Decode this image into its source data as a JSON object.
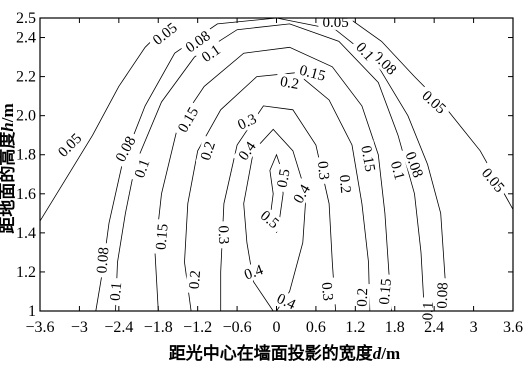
{
  "chart_data": {
    "type": "contour",
    "xlabel": "距光中心在墙面投影的宽度",
    "xlabel_var": "d",
    "xlabel_unit": "/m",
    "ylabel": "距地面的高度",
    "ylabel_var": "h",
    "ylabel_unit": "/m",
    "xlim": [
      -3.6,
      3.6
    ],
    "ylim": [
      1.0,
      2.5
    ],
    "grid": false,
    "xticks": [
      {
        "value": -3.6,
        "label": "−3.6"
      },
      {
        "value": -3.0,
        "label": "−3"
      },
      {
        "value": -2.4,
        "label": "−2.4"
      },
      {
        "value": -1.8,
        "label": "−1.8"
      },
      {
        "value": -1.2,
        "label": "−1.2"
      },
      {
        "value": -0.6,
        "label": "−0.6"
      },
      {
        "value": 0.0,
        "label": "0"
      },
      {
        "value": 0.6,
        "label": "0.6"
      },
      {
        "value": 1.2,
        "label": "1.2"
      },
      {
        "value": 1.8,
        "label": "1.8"
      },
      {
        "value": 2.4,
        "label": "2.4"
      },
      {
        "value": 3.0,
        "label": "3"
      },
      {
        "value": 3.6,
        "label": "3.6"
      }
    ],
    "yticks": [
      {
        "value": 1.0,
        "label": "1"
      },
      {
        "value": 1.2,
        "label": "1.2"
      },
      {
        "value": 1.4,
        "label": "1.4"
      },
      {
        "value": 1.6,
        "label": "1.6"
      },
      {
        "value": 1.8,
        "label": "1.8"
      },
      {
        "value": 2.0,
        "label": "2.0"
      },
      {
        "value": 2.2,
        "label": "2.2"
      },
      {
        "value": 2.4,
        "label": "2.4"
      },
      {
        "value": 2.5,
        "label": "2.5"
      }
    ],
    "levels": [
      {
        "level": 0.05,
        "points": [
          [
            -3.6,
            1.46
          ],
          [
            -3.2,
            1.68
          ],
          [
            -2.8,
            1.9
          ],
          [
            -2.4,
            2.15
          ],
          [
            -2.0,
            2.35
          ],
          [
            -1.55,
            2.5
          ],
          [
            1.1,
            2.5
          ],
          [
            1.6,
            2.38
          ],
          [
            2.1,
            2.2
          ],
          [
            2.6,
            2.03
          ],
          [
            3.1,
            1.82
          ],
          [
            3.6,
            1.52
          ]
        ],
        "labels": [
          {
            "text": "0.05",
            "x": -1.7,
            "y": 2.42,
            "rotate": -38
          },
          {
            "text": "0.05",
            "x": 0.9,
            "y": 2.48,
            "rotate": 0
          },
          {
            "text": "0.05",
            "x": -3.15,
            "y": 1.85,
            "rotate": -45
          },
          {
            "text": "0.05",
            "x": 2.4,
            "y": 2.07,
            "rotate": 42
          },
          {
            "text": "0.05",
            "x": 3.3,
            "y": 1.67,
            "rotate": 50
          }
        ]
      },
      {
        "level": 0.08,
        "points": [
          [
            -2.75,
            1.0
          ],
          [
            -2.65,
            1.2
          ],
          [
            -2.55,
            1.45
          ],
          [
            -2.35,
            1.75
          ],
          [
            -2.0,
            2.05
          ],
          [
            -1.55,
            2.32
          ],
          [
            -0.9,
            2.47
          ],
          [
            0.0,
            2.5
          ],
          [
            0.9,
            2.44
          ],
          [
            1.5,
            2.28
          ],
          [
            2.0,
            2.0
          ],
          [
            2.3,
            1.75
          ],
          [
            2.5,
            1.5
          ],
          [
            2.55,
            1.25
          ],
          [
            2.6,
            1.0
          ]
        ],
        "labels": [
          {
            "text": "0.08",
            "x": -1.2,
            "y": 2.38,
            "rotate": -35
          },
          {
            "text": "0.08",
            "x": 1.65,
            "y": 2.27,
            "rotate": 45
          },
          {
            "text": "0.08",
            "x": -2.3,
            "y": 1.83,
            "rotate": -62
          },
          {
            "text": "0.08",
            "x": 2.1,
            "y": 1.75,
            "rotate": 70
          },
          {
            "text": "0.08",
            "x": -2.65,
            "y": 1.26,
            "rotate": -85
          },
          {
            "text": "0.08",
            "x": 2.52,
            "y": 1.08,
            "rotate": -88
          }
        ]
      },
      {
        "level": 0.1,
        "points": [
          [
            -2.45,
            1.0
          ],
          [
            -2.42,
            1.25
          ],
          [
            -2.3,
            1.5
          ],
          [
            -2.15,
            1.75
          ],
          [
            -1.75,
            2.07
          ],
          [
            -1.25,
            2.3
          ],
          [
            -0.6,
            2.44
          ],
          [
            0.2,
            2.47
          ],
          [
            0.95,
            2.38
          ],
          [
            1.55,
            2.17
          ],
          [
            1.85,
            1.9
          ],
          [
            2.1,
            1.6
          ],
          [
            2.2,
            1.3
          ],
          [
            2.25,
            1.0
          ]
        ],
        "labels": [
          {
            "text": "0.1",
            "x": -1.0,
            "y": 2.32,
            "rotate": -35
          },
          {
            "text": "0.1",
            "x": 1.35,
            "y": 2.33,
            "rotate": 48
          },
          {
            "text": "0.1",
            "x": -2.05,
            "y": 1.73,
            "rotate": -70
          },
          {
            "text": "0.1",
            "x": 1.85,
            "y": 1.72,
            "rotate": 75
          },
          {
            "text": "0.1",
            "x": -2.45,
            "y": 1.1,
            "rotate": -85
          },
          {
            "text": "0.1",
            "x": 2.3,
            "y": 1.0,
            "rotate": -88
          }
        ]
      },
      {
        "level": 0.15,
        "points": [
          [
            -1.8,
            1.0
          ],
          [
            -1.85,
            1.3
          ],
          [
            -1.75,
            1.6
          ],
          [
            -1.5,
            1.95
          ],
          [
            -1.1,
            2.15
          ],
          [
            -0.5,
            2.32
          ],
          [
            0.2,
            2.35
          ],
          [
            0.85,
            2.25
          ],
          [
            1.3,
            2.05
          ],
          [
            1.55,
            1.8
          ],
          [
            1.65,
            1.5
          ],
          [
            1.7,
            1.25
          ],
          [
            1.75,
            1.0
          ]
        ],
        "labels": [
          {
            "text": "0.15",
            "x": 0.55,
            "y": 2.22,
            "rotate": 15
          },
          {
            "text": "0.15",
            "x": -1.35,
            "y": 1.98,
            "rotate": -60
          },
          {
            "text": "0.15",
            "x": 1.4,
            "y": 1.78,
            "rotate": 80
          },
          {
            "text": "0.15",
            "x": -1.75,
            "y": 1.38,
            "rotate": -85
          },
          {
            "text": "0.15",
            "x": 1.65,
            "y": 1.1,
            "rotate": -85
          }
        ]
      },
      {
        "level": 0.2,
        "points": [
          [
            -1.3,
            1.0
          ],
          [
            -1.4,
            1.25
          ],
          [
            -1.35,
            1.55
          ],
          [
            -1.2,
            1.82
          ],
          [
            -0.85,
            2.03
          ],
          [
            -0.3,
            2.2
          ],
          [
            0.3,
            2.22
          ],
          [
            0.8,
            2.08
          ],
          [
            1.15,
            1.85
          ],
          [
            1.3,
            1.55
          ],
          [
            1.4,
            1.25
          ],
          [
            1.42,
            1.0
          ]
        ],
        "labels": [
          {
            "text": "0.2",
            "x": 0.2,
            "y": 2.17,
            "rotate": 10
          },
          {
            "text": "0.2",
            "x": -1.05,
            "y": 1.82,
            "rotate": -72
          },
          {
            "text": "0.2",
            "x": 1.05,
            "y": 1.65,
            "rotate": 85
          },
          {
            "text": "0.2",
            "x": -1.25,
            "y": 1.16,
            "rotate": -85
          },
          {
            "text": "0.2",
            "x": 1.3,
            "y": 1.07,
            "rotate": -88
          }
        ]
      },
      {
        "level": 0.3,
        "points": [
          [
            -0.85,
            1.0
          ],
          [
            -0.85,
            1.2
          ],
          [
            -0.8,
            1.55
          ],
          [
            -0.6,
            1.85
          ],
          [
            -0.2,
            2.05
          ],
          [
            0.25,
            2.03
          ],
          [
            0.6,
            1.85
          ],
          [
            0.8,
            1.55
          ],
          [
            0.85,
            1.25
          ],
          [
            0.9,
            1.0
          ]
        ],
        "labels": [
          {
            "text": "0.3",
            "x": -0.45,
            "y": 1.97,
            "rotate": -25
          },
          {
            "text": "0.3",
            "x": 0.72,
            "y": 1.72,
            "rotate": 85
          },
          {
            "text": "0.3",
            "x": -0.8,
            "y": 1.39,
            "rotate": 88
          },
          {
            "text": "0.3",
            "x": 0.78,
            "y": 1.1,
            "rotate": 85
          }
        ]
      },
      {
        "level": 0.4,
        "points": [
          [
            -0.05,
            1.0
          ],
          [
            -0.35,
            1.15
          ],
          [
            -0.45,
            1.35
          ],
          [
            -0.5,
            1.55
          ],
          [
            -0.35,
            1.82
          ],
          [
            -0.05,
            1.93
          ],
          [
            0.25,
            1.82
          ],
          [
            0.45,
            1.6
          ],
          [
            0.4,
            1.35
          ],
          [
            0.2,
            1.1
          ],
          [
            0.0,
            1.0
          ]
        ],
        "labels": [
          {
            "text": "0.4",
            "x": -0.45,
            "y": 1.82,
            "rotate": -55
          },
          {
            "text": "0.4",
            "x": 0.38,
            "y": 1.6,
            "rotate": -60
          },
          {
            "text": "0.4",
            "x": -0.35,
            "y": 1.2,
            "rotate": -20
          },
          {
            "text": "0.4",
            "x": 0.15,
            "y": 1.05,
            "rotate": 25
          }
        ]
      },
      {
        "level": 0.5,
        "points": [
          [
            0.0,
            1.4
          ],
          [
            -0.1,
            1.47
          ],
          [
            -0.05,
            1.6
          ],
          [
            -0.1,
            1.72
          ],
          [
            0.0,
            1.8
          ],
          [
            0.08,
            1.72
          ],
          [
            0.1,
            1.6
          ],
          [
            0.05,
            1.48
          ],
          [
            0.0,
            1.4
          ]
        ],
        "labels": [
          {
            "text": "0.5",
            "x": 0.1,
            "y": 1.68,
            "rotate": -80
          },
          {
            "text": "0.5",
            "x": -0.1,
            "y": 1.47,
            "rotate": 40
          }
        ]
      }
    ]
  }
}
